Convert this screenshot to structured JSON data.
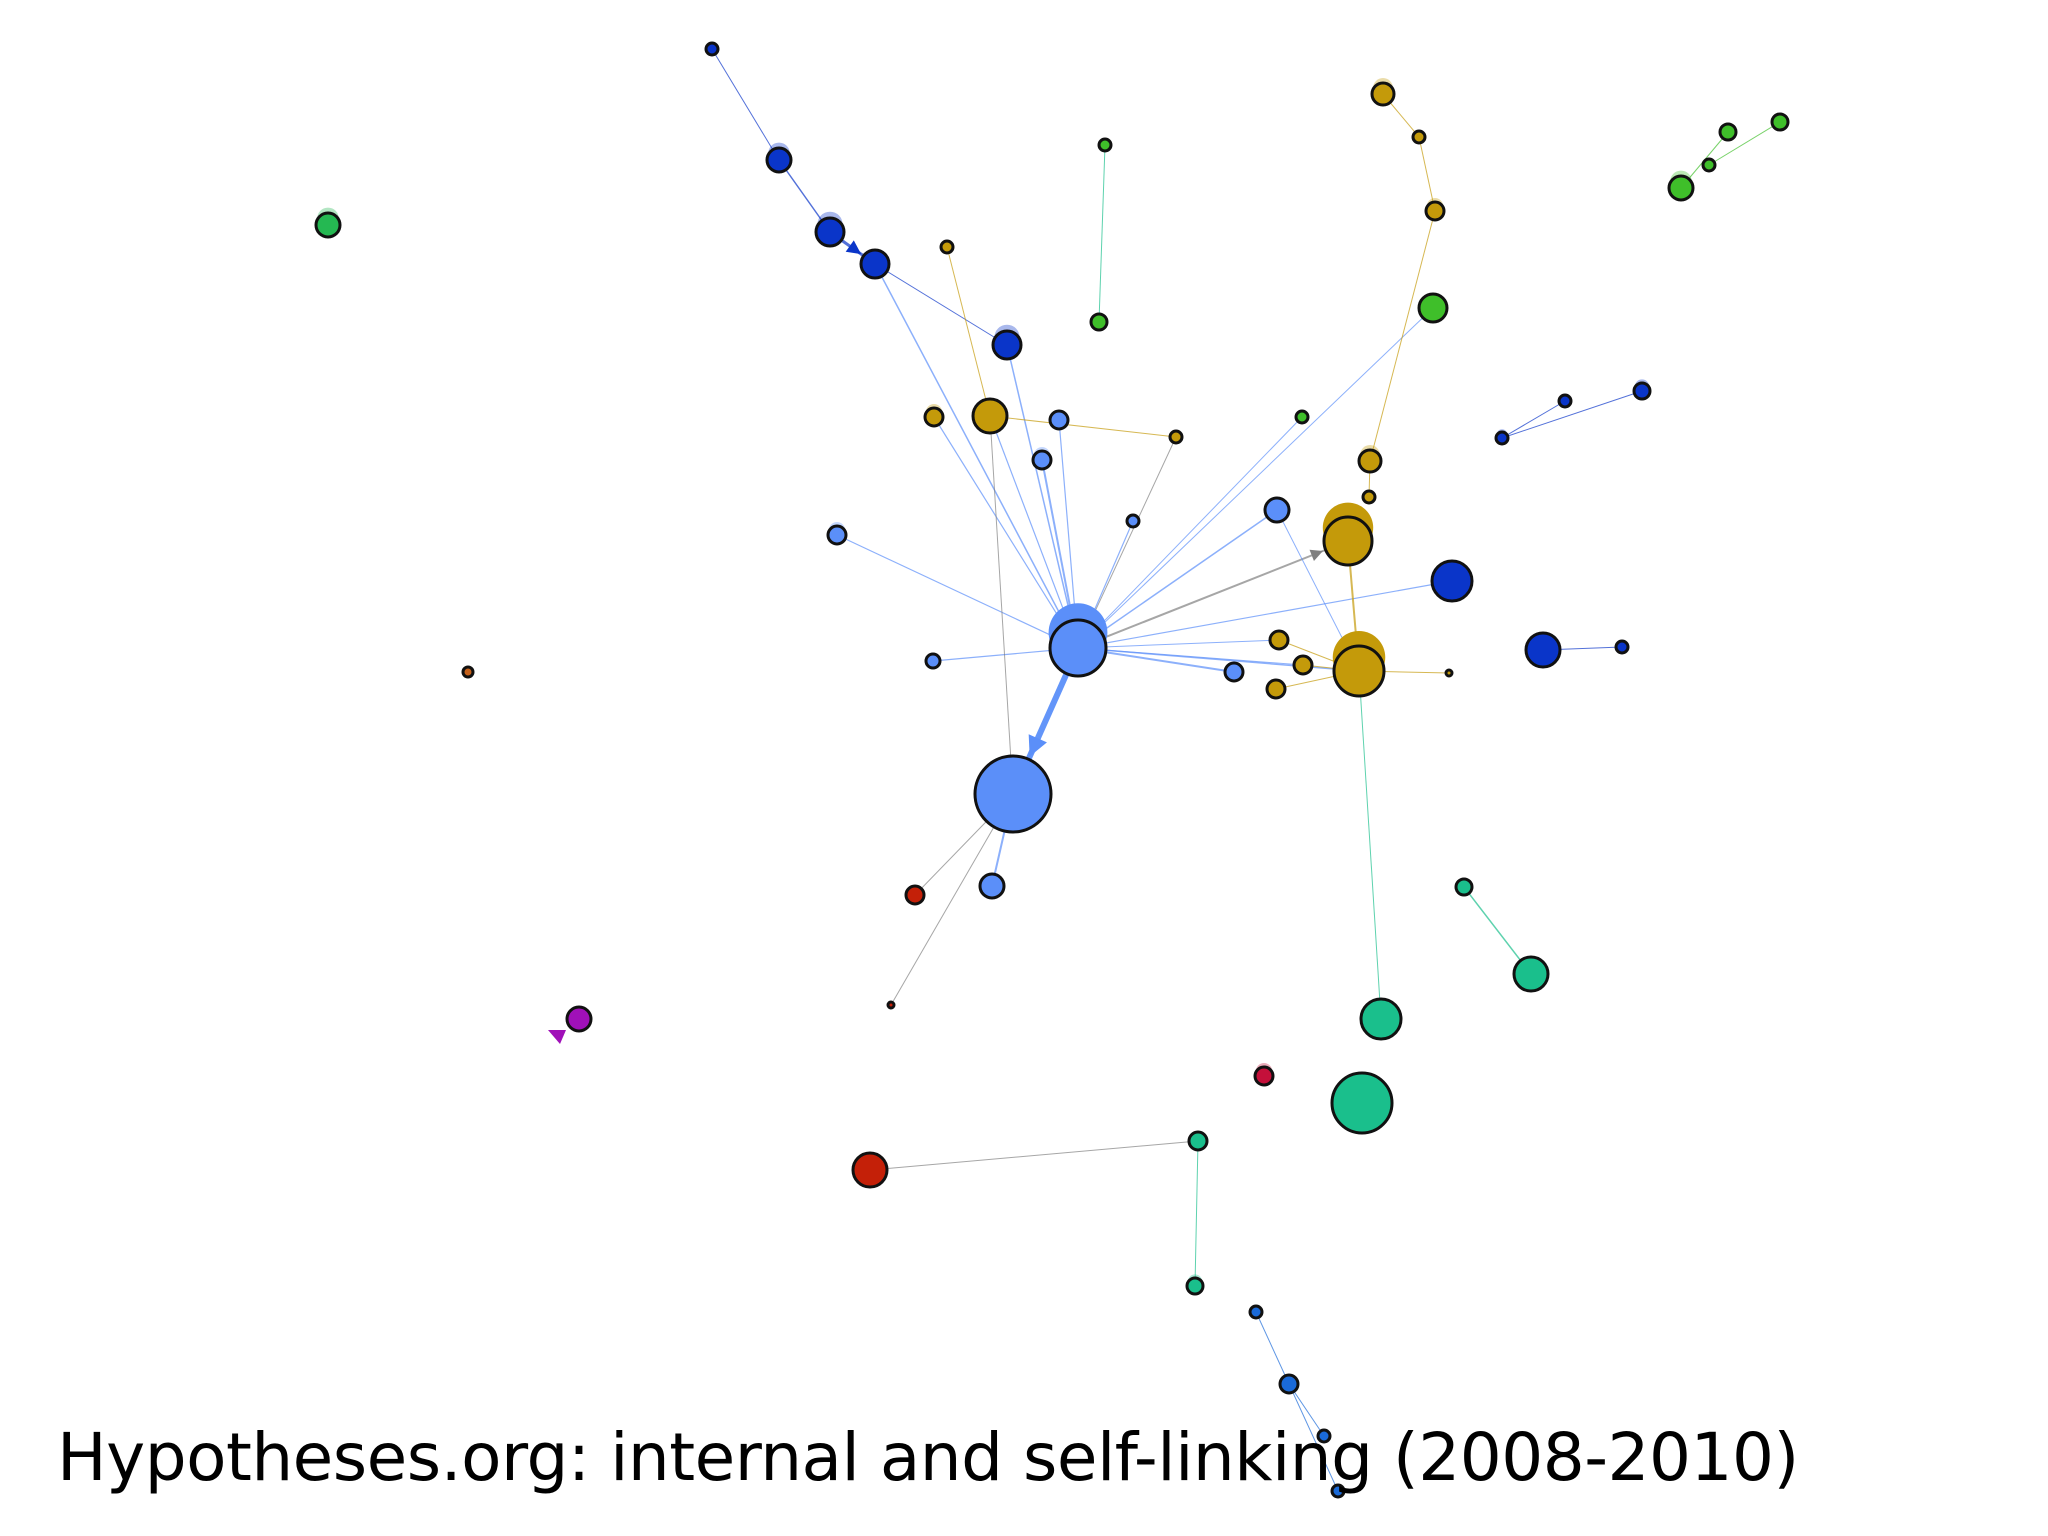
{
  "caption": "Hypotheses.org: internal and self-linking (2008-2010)",
  "colors": {
    "light_blue": "#5b8ff9",
    "dark_blue": "#0a35c9",
    "gold": "#c49a0a",
    "green": "#3fbf2a",
    "emerald": "#25b852",
    "teal": "#1abf8c",
    "red": "#c42008",
    "crimson": "#c4103a",
    "purple": "#a010b8",
    "orange": "#c4601a",
    "mid_blue": "#1a6ad9",
    "edge_grey": "#808080"
  }
}
